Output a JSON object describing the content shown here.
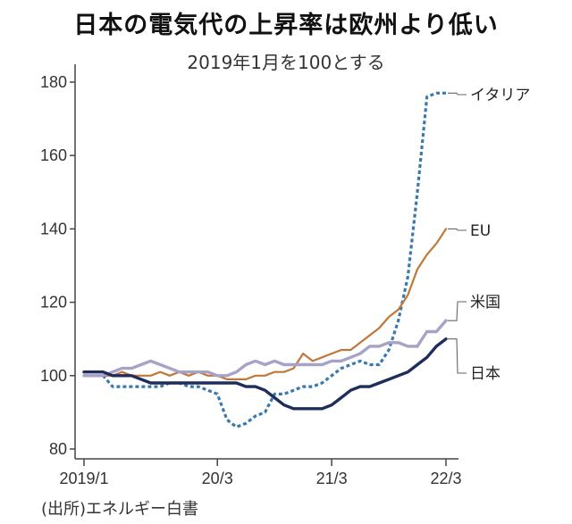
{
  "chart_data": {
    "type": "line",
    "title": "日本の電気代の上昇率は欧州より低い",
    "subtitle": "2019年1月を100とする",
    "source": "(出所)エネルギー白書",
    "x_tick_labels": [
      "2019/1",
      "20/3",
      "21/3",
      "22/3"
    ],
    "x_tick_months": [
      0,
      14,
      26,
      38
    ],
    "ylim": [
      80,
      180
    ],
    "y_ticks": [
      80,
      100,
      120,
      140,
      160,
      180
    ],
    "grid": false,
    "series": [
      {
        "name": "イタリア",
        "style": "dotted",
        "color": "#3a79ad",
        "x": [
          0,
          1,
          2,
          3,
          4,
          5,
          6,
          7,
          8,
          9,
          10,
          11,
          12,
          13,
          14,
          15,
          16,
          17,
          18,
          19,
          20,
          21,
          22,
          23,
          24,
          25,
          26,
          27,
          28,
          29,
          30,
          31,
          32,
          33,
          34,
          35,
          36,
          37,
          38
        ],
        "values": [
          100,
          100,
          100,
          97,
          97,
          97,
          97,
          97,
          97,
          98,
          98,
          97,
          97,
          96,
          95,
          88,
          86,
          87,
          89,
          90,
          95,
          95,
          96,
          97,
          97,
          98,
          100,
          102,
          103,
          104,
          103,
          103,
          107,
          115,
          127,
          150,
          176,
          177,
          177
        ]
      },
      {
        "name": "EU",
        "style": "solid",
        "color": "#c0783a",
        "x": [
          0,
          1,
          2,
          3,
          4,
          5,
          6,
          7,
          8,
          9,
          10,
          11,
          12,
          13,
          14,
          15,
          16,
          17,
          18,
          19,
          20,
          21,
          22,
          23,
          24,
          25,
          26,
          27,
          28,
          29,
          30,
          31,
          32,
          33,
          34,
          35,
          36,
          37,
          38
        ],
        "values": [
          100,
          100,
          100,
          100,
          101,
          100,
          100,
          100,
          101,
          100,
          101,
          100,
          101,
          100,
          100,
          99,
          99,
          99,
          100,
          100,
          101,
          101,
          102,
          106,
          104,
          105,
          106,
          107,
          107,
          109,
          111,
          113,
          116,
          118,
          122,
          129,
          133,
          136,
          140
        ]
      },
      {
        "name": "米国",
        "style": "solid",
        "color": "#a7a2c8",
        "x": [
          0,
          1,
          2,
          3,
          4,
          5,
          6,
          7,
          8,
          9,
          10,
          11,
          12,
          13,
          14,
          15,
          16,
          17,
          18,
          19,
          20,
          21,
          22,
          23,
          24,
          25,
          26,
          27,
          28,
          29,
          30,
          31,
          32,
          33,
          34,
          35,
          36,
          37,
          38
        ],
        "values": [
          100,
          100,
          100,
          101,
          102,
          102,
          103,
          104,
          103,
          102,
          101,
          101,
          101,
          101,
          100,
          100,
          101,
          103,
          104,
          103,
          104,
          103,
          103,
          103,
          103,
          103,
          104,
          104,
          105,
          106,
          108,
          108,
          109,
          109,
          108,
          108,
          112,
          112,
          115
        ]
      },
      {
        "name": "日本",
        "style": "solid",
        "color": "#1e2d5c",
        "x": [
          0,
          1,
          2,
          3,
          4,
          5,
          6,
          7,
          8,
          9,
          10,
          11,
          12,
          13,
          14,
          15,
          16,
          17,
          18,
          19,
          20,
          21,
          22,
          23,
          24,
          25,
          26,
          27,
          28,
          29,
          30,
          31,
          32,
          33,
          34,
          35,
          36,
          37,
          38
        ],
        "values": [
          101,
          101,
          101,
          100,
          100,
          100,
          99,
          98,
          98,
          98,
          98,
          98,
          98,
          98,
          98,
          98,
          98,
          97,
          97,
          96,
          94,
          92,
          91,
          91,
          91,
          91,
          92,
          94,
          96,
          97,
          97,
          98,
          99,
          100,
          101,
          103,
          105,
          108,
          110
        ]
      }
    ]
  }
}
